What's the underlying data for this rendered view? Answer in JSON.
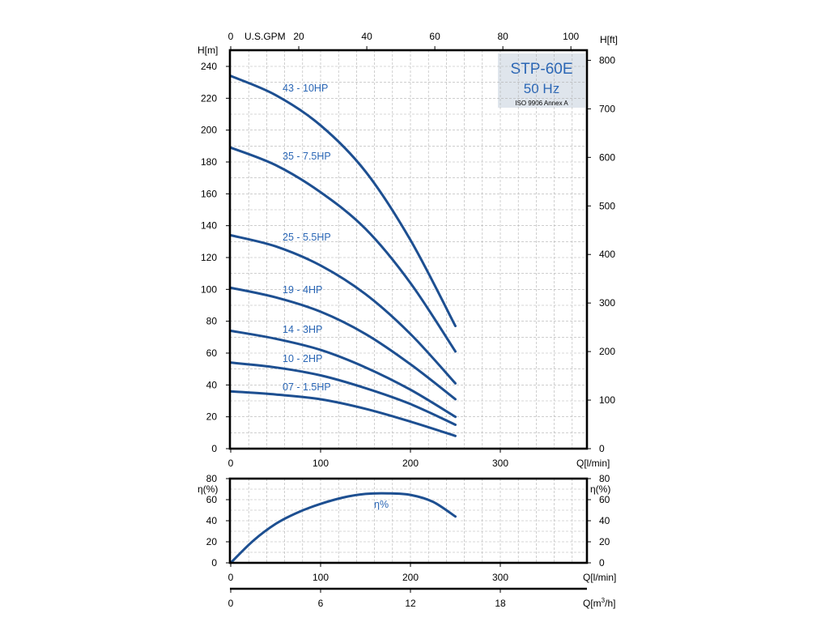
{
  "colors": {
    "curve": "#1d4f91",
    "label": "#2a66b5",
    "grid": "#b0b0b0",
    "model_box": "#dfe5ec"
  },
  "model": {
    "title": "STP-60E",
    "frequency": "50 Hz",
    "standard": "ISO 9906 Annex A"
  },
  "chart_data": [
    {
      "type": "line",
      "title": "STP-60E 50 Hz",
      "xlabel": "Q[l/min]",
      "ylabel": "H[m]",
      "ylabel_right": "H[ft]",
      "xlabel_top": "U.S.GPM",
      "xlim": [
        0,
        400
      ],
      "ylim": [
        0,
        245
      ],
      "xticks": [
        0,
        100,
        200,
        300
      ],
      "yticks": [
        0,
        20,
        40,
        60,
        80,
        100,
        120,
        140,
        160,
        180,
        200,
        220,
        240
      ],
      "yticks_right": [
        0,
        100,
        200,
        300,
        400,
        500,
        600,
        700,
        800
      ],
      "xticks_top": [
        0,
        20,
        40,
        60,
        80,
        100
      ],
      "top_axis_label_after": "U.S.GPM",
      "grid": true,
      "series": [
        {
          "name": "43 - 10HP",
          "x": [
            0,
            50,
            100,
            150,
            200,
            250
          ],
          "values": [
            234,
            222,
            203,
            174,
            131,
            77
          ]
        },
        {
          "name": "35 - 7.5HP",
          "x": [
            0,
            50,
            100,
            150,
            200,
            250
          ],
          "values": [
            189,
            178,
            161,
            138,
            104,
            61
          ]
        },
        {
          "name": "25 - 5.5HP",
          "x": [
            0,
            50,
            100,
            150,
            200,
            250
          ],
          "values": [
            134,
            127,
            115,
            97,
            72,
            41
          ]
        },
        {
          "name": "19 - 4HP",
          "x": [
            0,
            50,
            100,
            150,
            200,
            250
          ],
          "values": [
            101,
            95,
            86,
            72,
            53,
            31
          ]
        },
        {
          "name": "14 - 3HP",
          "x": [
            0,
            50,
            100,
            150,
            200,
            250
          ],
          "values": [
            74,
            69,
            62,
            51,
            37,
            20
          ]
        },
        {
          "name": "10 - 2HP",
          "x": [
            0,
            50,
            100,
            150,
            200,
            250
          ],
          "values": [
            54,
            51,
            46,
            38,
            28,
            15
          ]
        },
        {
          "name": "07 - 1.5HP",
          "x": [
            0,
            50,
            100,
            150,
            200,
            250
          ],
          "values": [
            36,
            34,
            31,
            25,
            17,
            8
          ]
        }
      ]
    },
    {
      "type": "line",
      "xlabel": "Q[l/min]",
      "ylabel": "η(%)",
      "ylabel_right": "η(%)",
      "xlim": [
        0,
        400
      ],
      "ylim": [
        0,
        80
      ],
      "xticks": [
        0,
        100,
        200,
        300
      ],
      "yticks": [
        0,
        20,
        40,
        60,
        80
      ],
      "grid": true,
      "series": [
        {
          "name": "η%",
          "x": [
            0,
            25,
            50,
            75,
            100,
            125,
            150,
            175,
            200,
            225,
            250
          ],
          "values": [
            0,
            21,
            37,
            48,
            56,
            62,
            65.5,
            66,
            64.5,
            58,
            44
          ]
        }
      ]
    },
    {
      "type": "axis",
      "xlabel": "Q[m³/h]",
      "xlabel_main": "Q[m",
      "xlabel_sup": "3",
      "xlabel_tail": "/h]",
      "xlim": [
        0,
        24
      ],
      "xticks": [
        0,
        6,
        12,
        18
      ]
    }
  ]
}
